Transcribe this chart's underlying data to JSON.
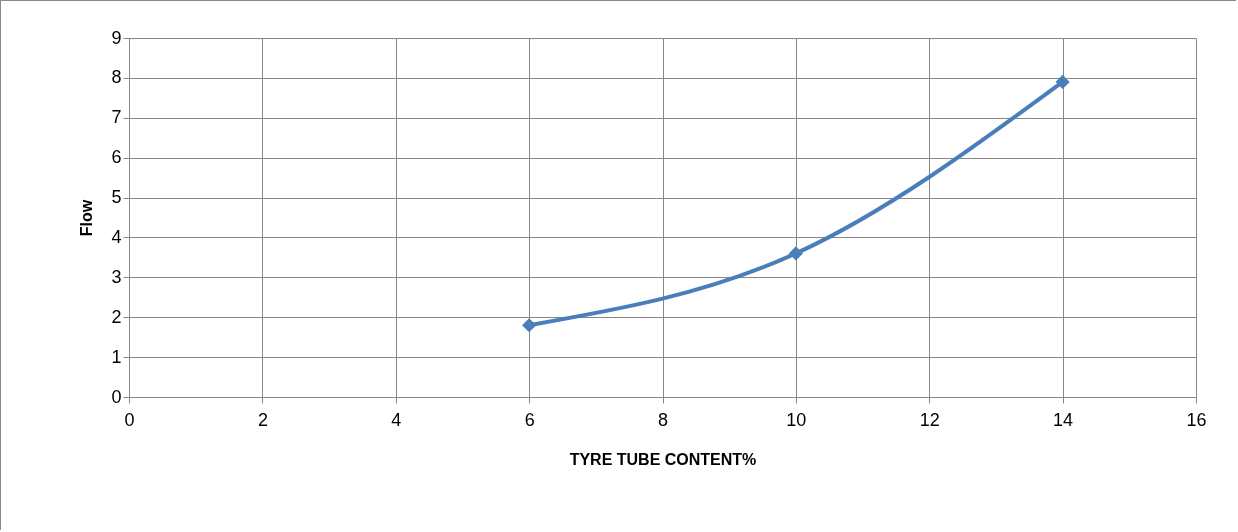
{
  "chart_data": {
    "type": "line",
    "xlabel": "TYRE TUBE CONTENT%",
    "ylabel": "Flow",
    "x": [
      6,
      10,
      14
    ],
    "series": [
      {
        "color": "#4a7ebb",
        "values": [
          1.8,
          3.6,
          7.9
        ]
      }
    ],
    "xlim": [
      0,
      16
    ],
    "xticks": [
      0,
      2,
      4,
      6,
      8,
      10,
      12,
      14,
      16
    ],
    "ylim": [
      0,
      9
    ],
    "yticks": [
      0,
      1,
      2,
      3,
      4,
      5,
      6,
      7,
      8,
      9
    ],
    "grid": true,
    "marker": "diamond",
    "line_style": "solid"
  }
}
